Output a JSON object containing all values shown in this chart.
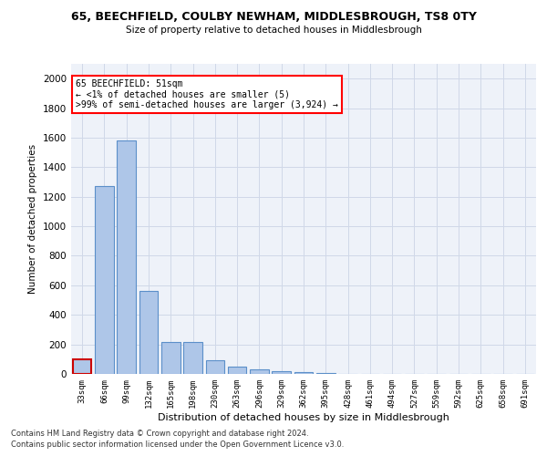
{
  "title1": "65, BEECHFIELD, COULBY NEWHAM, MIDDLESBROUGH, TS8 0TY",
  "title2": "Size of property relative to detached houses in Middlesbrough",
  "xlabel": "Distribution of detached houses by size in Middlesbrough",
  "ylabel": "Number of detached properties",
  "categories": [
    "33sqm",
    "66sqm",
    "99sqm",
    "132sqm",
    "165sqm",
    "198sqm",
    "230sqm",
    "263sqm",
    "296sqm",
    "329sqm",
    "362sqm",
    "395sqm",
    "428sqm",
    "461sqm",
    "494sqm",
    "527sqm",
    "559sqm",
    "592sqm",
    "625sqm",
    "658sqm",
    "691sqm"
  ],
  "values": [
    100,
    1270,
    1580,
    560,
    215,
    215,
    95,
    50,
    30,
    20,
    15,
    5,
    0,
    0,
    0,
    0,
    0,
    0,
    0,
    0,
    0
  ],
  "bar_color": "#aec6e8",
  "bar_edge_color": "#5b8fc9",
  "highlight_bar_index": 0,
  "highlight_edge_color": "#cc0000",
  "annotation_line1": "65 BEECHFIELD: 51sqm",
  "annotation_line2": "← <1% of detached houses are smaller (5)",
  "annotation_line3": ">99% of semi-detached houses are larger (3,924) →",
  "ylim": [
    0,
    2100
  ],
  "yticks": [
    0,
    200,
    400,
    600,
    800,
    1000,
    1200,
    1400,
    1600,
    1800,
    2000
  ],
  "grid_color": "#d0d8e8",
  "bg_color": "#eef2f9",
  "footer1": "Contains HM Land Registry data © Crown copyright and database right 2024.",
  "footer2": "Contains public sector information licensed under the Open Government Licence v3.0."
}
